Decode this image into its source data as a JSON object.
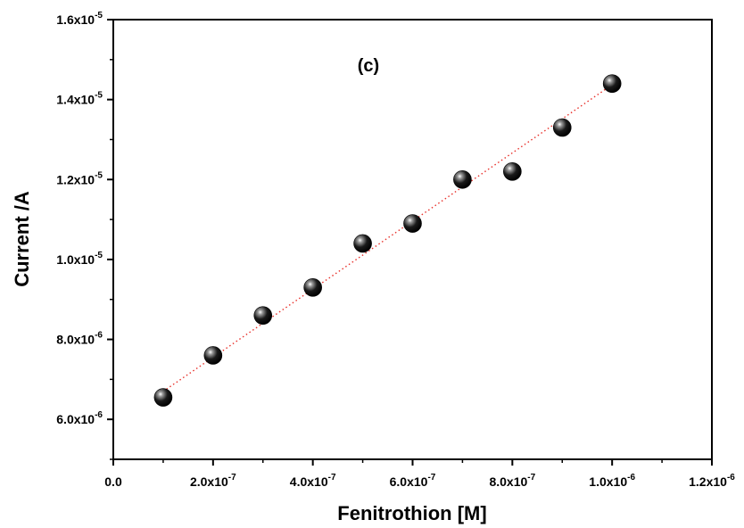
{
  "chart_data": {
    "type": "scatter",
    "panel_label": "(c)",
    "xlabel": "Fenitrothion [M]",
    "ylabel": "Current /A",
    "xlim": [
      0,
      1.2e-06
    ],
    "ylim": [
      5e-06,
      1.6e-05
    ],
    "x_ticks": [
      {
        "value": 0,
        "mant": "0.0",
        "exp": ""
      },
      {
        "value": 2e-07,
        "mant": "2.0x10",
        "exp": "-7"
      },
      {
        "value": 4e-07,
        "mant": "4.0x10",
        "exp": "-7"
      },
      {
        "value": 6e-07,
        "mant": "6.0x10",
        "exp": "-7"
      },
      {
        "value": 8e-07,
        "mant": "8.0x10",
        "exp": "-7"
      },
      {
        "value": 1e-06,
        "mant": "1.0x10",
        "exp": "-6"
      },
      {
        "value": 1.2e-06,
        "mant": "1.2x10",
        "exp": "-6"
      }
    ],
    "y_ticks": [
      {
        "value": 6e-06,
        "mant": "6.0x10",
        "exp": "-6"
      },
      {
        "value": 8e-06,
        "mant": "8.0x10",
        "exp": "-6"
      },
      {
        "value": 1e-05,
        "mant": "1.0x10",
        "exp": "-5"
      },
      {
        "value": 1.2e-05,
        "mant": "1.2x10",
        "exp": "-5"
      },
      {
        "value": 1.4e-05,
        "mant": "1.4x10",
        "exp": "-5"
      },
      {
        "value": 1.6e-05,
        "mant": "1.6x10",
        "exp": "-5"
      }
    ],
    "series": [
      {
        "x": [
          1e-07,
          2e-07,
          3e-07,
          4e-07,
          5e-07,
          6e-07,
          7e-07,
          8e-07,
          9e-07,
          1e-06
        ],
        "y": [
          6.55e-06,
          7.6e-06,
          8.6e-06,
          9.3e-06,
          1.04e-05,
          1.09e-05,
          1.2e-05,
          1.22e-05,
          1.33e-05,
          1.44e-05
        ],
        "marker_color": "#000000"
      }
    ],
    "fit_line": {
      "x": [
        1e-07,
        1e-06
      ],
      "y": [
        6.7e-06,
        1.437e-05
      ],
      "color": "#e8302a",
      "style": "dotted"
    },
    "grid": false,
    "legend": "none"
  }
}
